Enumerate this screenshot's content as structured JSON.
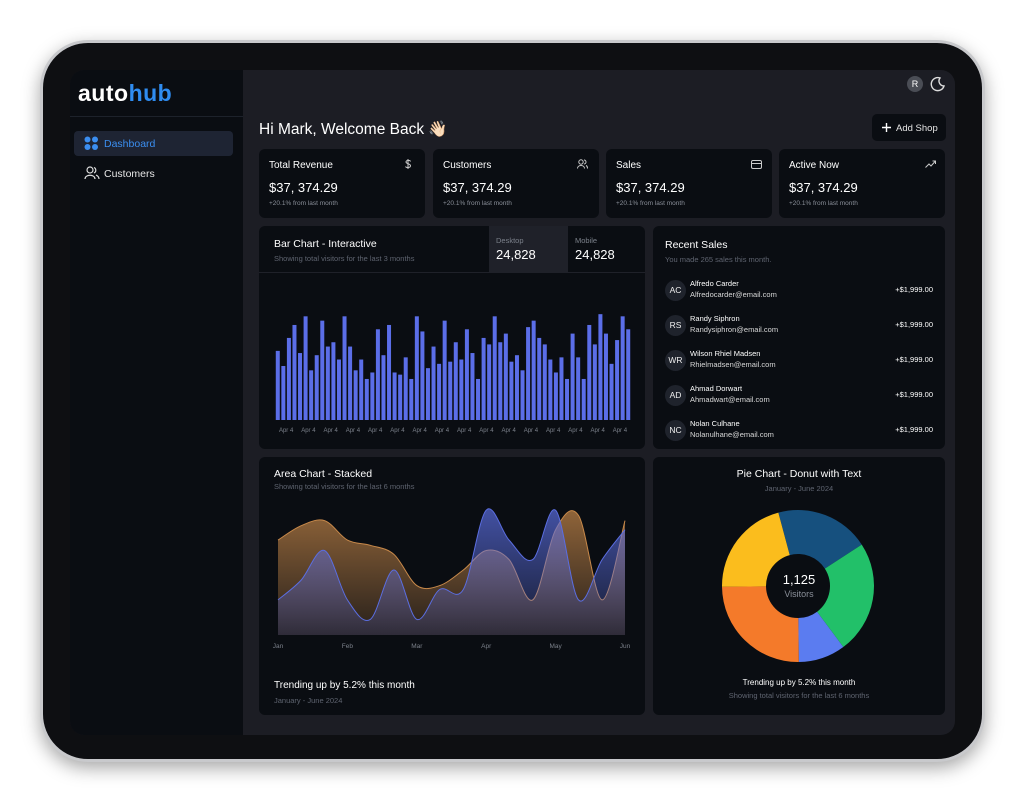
{
  "sidebar": {
    "logo": {
      "part1": "auto",
      "part2": "hub"
    },
    "nav": [
      {
        "label": "Dashboard"
      },
      {
        "label": "Customers"
      }
    ]
  },
  "header": {
    "avatar": "R",
    "greeting": "Hi Mark, Welcome Back 👋🏻",
    "button": "Add Shop"
  },
  "stats": [
    {
      "title": "Total Revenue",
      "value": "$37, 374.29",
      "change": "+20.1% from last month"
    },
    {
      "title": "Customers",
      "value": "$37, 374.29",
      "change": "+20.1% from last month"
    },
    {
      "title": "Sales",
      "value": "$37, 374.29",
      "change": "+20.1% from last month"
    },
    {
      "title": "Active Now",
      "value": "$37, 374.29",
      "change": "+20.1% from last month"
    }
  ],
  "recent_sales": {
    "title": "Recent Sales",
    "subtitle": "You made 265 sales this month.",
    "rows": [
      {
        "initials": "AC",
        "name": "Alfredo Carder",
        "email": "Alfredocarder@email.com",
        "amount": "+$1,999.00"
      },
      {
        "initials": "RS",
        "name": "Randy Siphron",
        "email": "Randysiphron@email.com",
        "amount": "+$1,999.00"
      },
      {
        "initials": "WR",
        "name": "Wilson Rhiel Madsen",
        "email": "Rhielmadsen@email.com",
        "amount": "+$1,999.00"
      },
      {
        "initials": "AD",
        "name": "Ahmad Dorwart",
        "email": "Ahmadwart@email.com",
        "amount": "+$1,999.00"
      },
      {
        "initials": "NC",
        "name": "Nolan Culhane",
        "email": "Nolanulhane@email.com",
        "amount": "+$1,999.00"
      }
    ]
  },
  "chart_data": [
    {
      "type": "bar",
      "title": "Bar Chart - Interactive",
      "subtitle": "Showing total visitors for the last 3 months",
      "tabs": [
        {
          "label": "Desktop",
          "value": "24,828"
        },
        {
          "label": "Mobile",
          "value": "24,828"
        }
      ],
      "color": "#5b6ee8",
      "ylim": [
        0,
        100
      ],
      "categories": [
        "Apr 4",
        null,
        null,
        null,
        "Apr 4",
        null,
        null,
        null,
        "Apr 4",
        null,
        null,
        null,
        "Apr 4",
        null,
        null,
        null,
        "Apr 4",
        null,
        null,
        null,
        "Apr 4",
        null,
        null,
        null,
        "Apr 4",
        null,
        null,
        null,
        "Apr 4",
        null,
        null,
        null,
        "Apr 4",
        null,
        null,
        null,
        "Apr 4",
        null,
        null,
        null,
        "Apr 4",
        null,
        null,
        null,
        "Apr 4",
        null,
        null,
        null,
        "Apr 4",
        null,
        null,
        null,
        "Apr 4",
        null,
        null,
        null,
        "Apr 4",
        null,
        null,
        null,
        "Apr 4",
        null,
        null,
        null
      ],
      "values": [
        64,
        50,
        76,
        88,
        62,
        96,
        46,
        60,
        92,
        68,
        72,
        56,
        96,
        68,
        46,
        56,
        38,
        44,
        84,
        60,
        88,
        44,
        42,
        58,
        38,
        96,
        82,
        48,
        68,
        52,
        92,
        54,
        72,
        56,
        84,
        62,
        38,
        76,
        70,
        96,
        72,
        80,
        54,
        60,
        46,
        86,
        92,
        76,
        70,
        56,
        44,
        58,
        38,
        80,
        58,
        38,
        88,
        70,
        98,
        80,
        52,
        74,
        96,
        84
      ]
    },
    {
      "type": "area",
      "title": "Area Chart - Stacked",
      "subtitle": "Showing total visitors for the last 6 months",
      "footer_title": "Trending up by 5.2% this month",
      "footer_subtitle": "January - June 2024",
      "x": [
        0,
        0.33,
        0.67,
        1,
        1.33,
        1.67,
        2,
        2.33,
        2.67,
        3,
        3.33,
        3.67,
        4,
        4.33,
        4.67,
        5
      ],
      "xlim": [
        0,
        5
      ],
      "xticks": [
        {
          "value": 0,
          "label": "Jan"
        },
        {
          "value": 1,
          "label": "Feb"
        },
        {
          "value": 2,
          "label": "Mar"
        },
        {
          "value": 3,
          "label": "Apr"
        },
        {
          "value": 4,
          "label": "May"
        },
        {
          "value": 5,
          "label": "Jun"
        }
      ],
      "ylim": [
        0,
        100
      ],
      "series": [
        {
          "color": "#c8894a",
          "values": [
            73,
            84,
            88,
            73,
            69,
            62,
            38,
            38,
            50,
            65,
            58,
            27,
            81,
            92,
            27,
            88
          ]
        },
        {
          "color": "#5b6ee1",
          "values": [
            27,
            42,
            65,
            27,
            12,
            50,
            12,
            35,
            35,
            96,
            73,
            58,
            96,
            27,
            58,
            81
          ]
        }
      ]
    },
    {
      "type": "pie",
      "title": "Pie Chart - Donut with Text",
      "subtitle": "January - June 2024",
      "center_value": "1,125",
      "center_label": "Visitors",
      "footer_title": "Trending up by 5.2% this month",
      "footer_subtitle": "Showing total visitors for the last 6 months",
      "values": [
        20,
        24,
        10,
        25,
        21
      ],
      "colors": [
        "#16507e",
        "#22c069",
        "#5b7cf0",
        "#f47a2a",
        "#fbbd1d"
      ]
    }
  ]
}
